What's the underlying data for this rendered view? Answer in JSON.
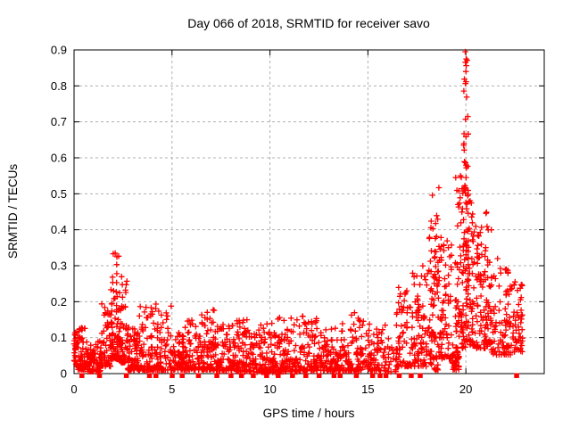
{
  "chart_data": {
    "type": "scatter",
    "title": "Day 066 of 2018, SRMTID for receiver savo",
    "xlabel": "GPS time / hours",
    "ylabel": "SRMTID / TECUs",
    "xlim": [
      0,
      24
    ],
    "ylim": [
      0,
      0.9
    ],
    "xticks": [
      0,
      5,
      10,
      15,
      20
    ],
    "xtick_labels": [
      "0",
      "5",
      "10",
      "15",
      "20"
    ],
    "yticks": [
      0,
      0.1,
      0.2,
      0.3,
      0.4,
      0.5,
      0.6,
      0.7,
      0.8,
      0.9
    ],
    "ytick_labels": [
      "0",
      "0.1",
      "0.2",
      "0.3",
      "0.4",
      "0.5",
      "0.6",
      "0.7",
      "0.8",
      "0.9"
    ],
    "grid": true,
    "legend": "none",
    "marker": "plus",
    "zero_marker": "filled-square",
    "series_color": "#ff0000",
    "grid_color": "#b0b0b0",
    "border_color": "#000000",
    "background_color": "#ffffff",
    "seed": 1234,
    "scatter_segments": [
      {
        "x0": 0.0,
        "x1": 0.08,
        "n": 12,
        "ymin": 0.03,
        "ymax": 0.11,
        "exp": 1.2
      },
      {
        "x0": 0.05,
        "x1": 0.6,
        "n": 65,
        "ymin": 0.01,
        "ymax": 0.13,
        "exp": 1.7
      },
      {
        "x0": 0.6,
        "x1": 1.35,
        "n": 85,
        "ymin": 0.005,
        "ymax": 0.09,
        "exp": 1.8
      },
      {
        "x0": 1.35,
        "x1": 1.88,
        "n": 60,
        "ymin": 0.02,
        "ymax": 0.2,
        "exp": 2.2
      },
      {
        "x0": 1.88,
        "x1": 2.32,
        "n": 75,
        "ymin": 0.04,
        "ymax": 0.335,
        "exp": 1.6
      },
      {
        "x0": 2.32,
        "x1": 2.72,
        "n": 55,
        "ymin": 0.03,
        "ymax": 0.28,
        "exp": 2.0
      },
      {
        "x0": 2.72,
        "x1": 3.3,
        "n": 75,
        "ymin": 0.01,
        "ymax": 0.13,
        "exp": 2.0
      },
      {
        "x0": 3.3,
        "x1": 4.1,
        "n": 80,
        "ymin": 0.01,
        "ymax": 0.19,
        "exp": 2.6
      },
      {
        "x0": 4.1,
        "x1": 5.0,
        "n": 85,
        "ymin": 0.01,
        "ymax": 0.2,
        "exp": 3.0
      },
      {
        "x0": 5.0,
        "x1": 5.6,
        "n": 65,
        "ymin": 0.01,
        "ymax": 0.12,
        "exp": 2.0
      },
      {
        "x0": 5.6,
        "x1": 6.45,
        "n": 80,
        "ymin": 0.01,
        "ymax": 0.15,
        "exp": 2.4
      },
      {
        "x0": 6.45,
        "x1": 7.25,
        "n": 85,
        "ymin": 0.01,
        "ymax": 0.18,
        "exp": 2.4
      },
      {
        "x0": 7.25,
        "x1": 8.25,
        "n": 90,
        "ymin": 0.008,
        "ymax": 0.14,
        "exp": 2.2
      },
      {
        "x0": 8.25,
        "x1": 9.25,
        "n": 95,
        "ymin": 0.005,
        "ymax": 0.15,
        "exp": 2.4
      },
      {
        "x0": 9.25,
        "x1": 10.3,
        "n": 100,
        "ymin": 0.004,
        "ymax": 0.14,
        "exp": 2.4
      },
      {
        "x0": 10.3,
        "x1": 11.4,
        "n": 100,
        "ymin": 0.005,
        "ymax": 0.16,
        "exp": 2.6
      },
      {
        "x0": 11.4,
        "x1": 12.5,
        "n": 100,
        "ymin": 0.008,
        "ymax": 0.16,
        "exp": 2.4
      },
      {
        "x0": 12.5,
        "x1": 13.6,
        "n": 100,
        "ymin": 0.008,
        "ymax": 0.15,
        "exp": 2.4
      },
      {
        "x0": 13.6,
        "x1": 14.8,
        "n": 105,
        "ymin": 0.008,
        "ymax": 0.17,
        "exp": 2.6
      },
      {
        "x0": 14.8,
        "x1": 15.9,
        "n": 85,
        "ymin": 0.008,
        "ymax": 0.14,
        "exp": 2.4
      },
      {
        "x0": 15.9,
        "x1": 16.45,
        "n": 25,
        "ymin": 0.005,
        "ymax": 0.1,
        "exp": 2.0
      },
      {
        "x0": 16.45,
        "x1": 17.25,
        "n": 70,
        "ymin": 0.02,
        "ymax": 0.24,
        "exp": 2.2
      },
      {
        "x0": 17.25,
        "x1": 18.1,
        "n": 85,
        "ymin": 0.02,
        "ymax": 0.3,
        "exp": 2.0
      },
      {
        "x0": 18.1,
        "x1": 18.6,
        "n": 60,
        "ymin": 0.08,
        "ymax": 0.5,
        "exp": 1.4
      },
      {
        "x0": 18.1,
        "x1": 18.6,
        "n": 22,
        "ymin": 0.01,
        "ymax": 0.07,
        "exp": 1.5
      },
      {
        "x0": 18.6,
        "x1": 19.3,
        "n": 80,
        "ymin": 0.04,
        "ymax": 0.38,
        "exp": 1.6
      },
      {
        "x0": 19.3,
        "x1": 19.65,
        "n": 45,
        "ymin": 0.01,
        "ymax": 0.08,
        "exp": 1.5
      },
      {
        "x0": 19.45,
        "x1": 19.78,
        "n": 40,
        "ymin": 0.1,
        "ymax": 0.55,
        "exp": 1.4
      },
      {
        "x0": 19.78,
        "x1": 20.35,
        "n": 110,
        "ymin": 0.07,
        "ymax": 0.52,
        "exp": 1.5
      },
      {
        "x0": 19.88,
        "x1": 20.12,
        "n": 26,
        "ymin": 0.5,
        "ymax": 0.9,
        "exp": 1.2
      },
      {
        "x0": 20.35,
        "x1": 21.15,
        "n": 100,
        "ymin": 0.07,
        "ymax": 0.45,
        "exp": 1.5
      },
      {
        "x0": 21.15,
        "x1": 22.35,
        "n": 105,
        "ymin": 0.05,
        "ymax": 0.32,
        "exp": 1.6
      },
      {
        "x0": 22.35,
        "x1": 22.9,
        "n": 50,
        "ymin": 0.06,
        "ymax": 0.26,
        "exp": 1.2
      }
    ],
    "notable_points": [
      [
        2.1,
        0.335
      ],
      [
        18.62,
        0.517
      ],
      [
        19.6,
        0.47
      ],
      [
        19.97,
        0.895
      ],
      [
        20.02,
        0.875
      ],
      [
        20.0,
        0.84
      ],
      [
        21.3,
        0.4
      ]
    ],
    "zero_square_x": [
      0.4,
      1.3,
      2.67,
      3.85,
      4.18,
      5.01,
      5.52,
      6.35,
      7.29,
      8.01,
      8.55,
      9.15,
      9.83,
      10.42,
      11.15,
      11.83,
      12.51,
      13.27,
      13.58,
      14.41,
      15.24,
      15.62,
      15.92,
      16.6,
      17.21,
      17.67,
      22.59
    ]
  }
}
